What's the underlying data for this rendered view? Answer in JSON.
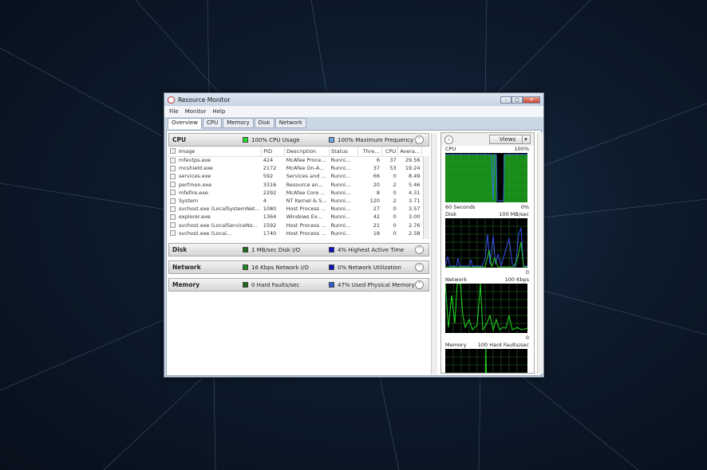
{
  "window": {
    "title": "Resource Monitor",
    "controls": [
      "–",
      "□",
      "✕"
    ]
  },
  "menu": [
    "File",
    "Monitor",
    "Help"
  ],
  "tabs": [
    "Overview",
    "CPU",
    "Memory",
    "Disk",
    "Network"
  ],
  "cpu": {
    "name": "CPU",
    "m1": "100% CPU Usage",
    "m2": "100% Maximum Frequency",
    "m1_color": "#22dd22",
    "m2_color": "#6aa8e8",
    "columns": [
      "Image",
      "PID",
      "Description",
      "Status",
      "Thre...",
      "CPU",
      "Avera..."
    ],
    "rows": [
      [
        "mfevtps.exe",
        "424",
        "McAfee Proce...",
        "Runni...",
        "6",
        "37",
        "29.56"
      ],
      [
        "mcshield.exe",
        "2172",
        "McAfee On-A...",
        "Runni...",
        "37",
        "53",
        "19.24"
      ],
      [
        "services.exe",
        "592",
        "Services and ...",
        "Runni...",
        "66",
        "0",
        "8.49"
      ],
      [
        "perfmon.exe",
        "3316",
        "Resource an...",
        "Runni...",
        "20",
        "2",
        "5.46"
      ],
      [
        "mfefire.exe",
        "2292",
        "McAfee Core ...",
        "Runni...",
        "8",
        "0",
        "4.31"
      ],
      [
        "System",
        "4",
        "NT Kernel & S...",
        "Runni...",
        "120",
        "2",
        "3.71"
      ],
      [
        "svchost.exe (LocalSystemNet...",
        "1080",
        "Host Process ...",
        "Runni...",
        "27",
        "0",
        "3.57"
      ],
      [
        "explorer.exe",
        "1364",
        "Windows Ex...",
        "Runni...",
        "42",
        "0",
        "3.00"
      ],
      [
        "svchost.exe (LocalServiceNo...",
        "1592",
        "Host Process ...",
        "Runni...",
        "21",
        "0",
        "2.76"
      ],
      [
        "svchost.exe (Local...",
        "1740",
        "Host Process ...",
        "Runni...",
        "18",
        "0",
        "2.58"
      ]
    ]
  },
  "disk": {
    "name": "Disk",
    "m1": "1 MB/sec Disk I/O",
    "m2": "4% Highest Active Time",
    "m1_color": "#1a6b1a",
    "m2_color": "#1010c0"
  },
  "network": {
    "name": "Network",
    "m1": "16 Kbps Network I/O",
    "m2": "0% Network Utilization",
    "m1_color": "#1a8b1a",
    "m2_color": "#1010c0"
  },
  "memory": {
    "name": "Memory",
    "m1": "0 Hard Faults/sec",
    "m2": "47% Used Physical Memory",
    "m1_color": "#1a6b1a",
    "m2_color": "#3060d0"
  },
  "graphs": {
    "views": "Views",
    "cpu": {
      "label": "CPU",
      "max": "100%",
      "time": "60 Seconds",
      "min": "0%"
    },
    "disk": {
      "label": "Disk",
      "max": "100 MB/sec",
      "min": "0"
    },
    "network": {
      "label": "Network",
      "max": "100 Kbps",
      "min": "0"
    },
    "memory": {
      "label": "Memory",
      "max": "100 Hard Faults/sec"
    }
  }
}
